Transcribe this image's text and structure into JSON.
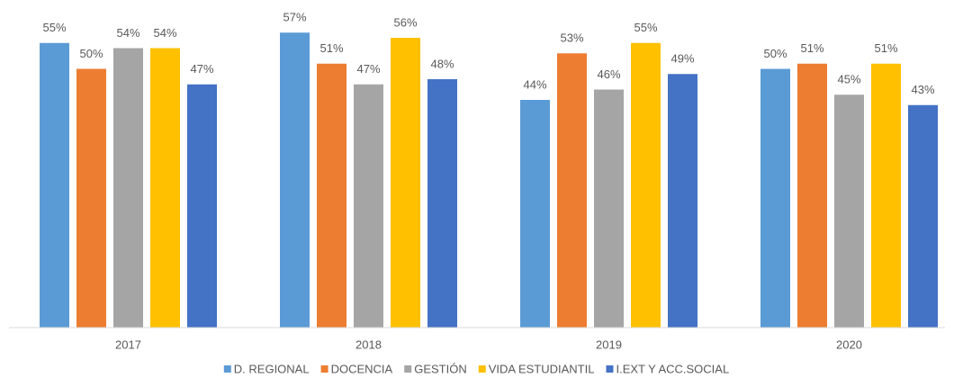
{
  "chart_data": {
    "type": "bar",
    "categories": [
      "2017",
      "2018",
      "2019",
      "2020"
    ],
    "series": [
      {
        "name": "D. REGIONAL",
        "color": "#5b9bd5",
        "values": [
          55,
          57,
          44,
          50
        ],
        "value_labels": [
          "55%",
          "57%",
          "44%",
          "50%"
        ]
      },
      {
        "name": "DOCENCIA",
        "color": "#ed7d31",
        "values": [
          50,
          51,
          53,
          51
        ],
        "value_labels": [
          "50%",
          "51%",
          "53%",
          "51%"
        ]
      },
      {
        "name": "GESTIÓN",
        "color": "#a5a5a5",
        "values": [
          54,
          47,
          46,
          45
        ],
        "value_labels": [
          "54%",
          "47%",
          "46%",
          "45%"
        ]
      },
      {
        "name": "VIDA ESTUDIANTIL",
        "color": "#ffc000",
        "values": [
          54,
          56,
          55,
          51
        ],
        "value_labels": [
          "54%",
          "56%",
          "55%",
          "51%"
        ]
      },
      {
        "name": "I.EXT Y ACC.SOCIAL",
        "color": "#4472c4",
        "values": [
          47,
          48,
          49,
          43
        ],
        "value_labels": [
          "47%",
          "48%",
          "49%",
          "43%"
        ]
      }
    ],
    "ylim": [
      0,
      60
    ],
    "legend": "bottom"
  }
}
